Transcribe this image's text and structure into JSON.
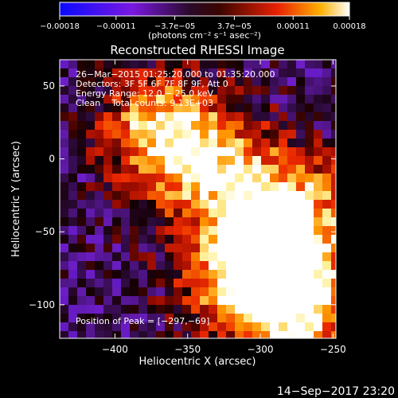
{
  "chart_data": {
    "type": "heatmap",
    "title": "Reconstructed RHESSI Image",
    "xlabel": "Heliocentric X (arcsec)",
    "ylabel": "Heliocentric Y (arcsec)",
    "xlim": [
      -438,
      -248
    ],
    "ylim": [
      -123,
      68
    ],
    "x_ticks": [
      -400,
      -350,
      -300,
      -250
    ],
    "x_tick_labels": [
      "−400",
      "−350",
      "−300",
      "−250"
    ],
    "y_ticks": [
      -100,
      -50,
      0,
      50
    ],
    "y_tick_labels": [
      "−100",
      "−50",
      "0",
      "50"
    ],
    "colorbar": {
      "min": -0.00018,
      "max": 0.00018,
      "ticks": [
        -0.00018,
        -0.00011,
        -3.7e-05,
        3.7e-05,
        0.00011,
        0.00018
      ],
      "tick_labels": [
        "−0.00018",
        "−0.00011",
        "−3.7e−05",
        "3.7e−05",
        "0.00011",
        "0.00018"
      ],
      "unit_label": "(photons cm⁻² s⁻¹ asec⁻²)"
    },
    "annotations": [
      "26−Mar−2015 01:25:20.000 to 01:35:20.000",
      "Detectors: 3F 5F 6F 7F 8F 9F, Att 0",
      "Energy Range: 12.0 − 25.0 keV",
      "Clean    Total counts: 9.13E+03"
    ],
    "peak_label": "Position of Peak = [−297,−69]",
    "peak_position": [
      -297,
      -69
    ],
    "colormap": "blue-purple-red-yellow-white"
  },
  "footer": {
    "timestamp": "14−Sep−2017 23:20"
  }
}
